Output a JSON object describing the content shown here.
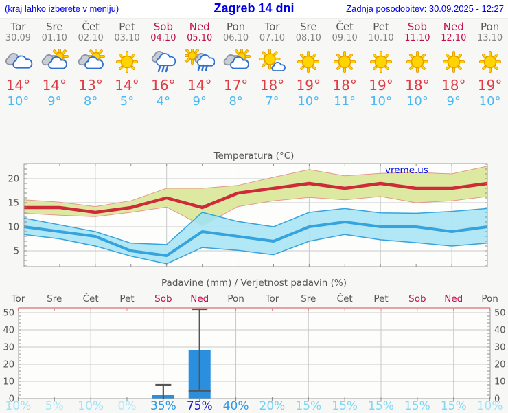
{
  "header": {
    "left_note": "(kraj lahko izberete v meniju)",
    "title": "Zagreb 14 dni",
    "updated": "Zadnja posodobitev: 30.09.2025 - 12:27"
  },
  "colors": {
    "header_blue": "#0000e8",
    "weekend": "#bf0d4f",
    "day_gray": "#555555",
    "date_gray": "#848484",
    "tmax_red": "#e13a45",
    "tmin_blue": "#4cb9f2",
    "axis_text": "#555555",
    "grid": "#c9c9c9",
    "border": "#9c9c9c",
    "tick": "#8a8a8a",
    "pink_axis": "#e08585",
    "watermark_blue": "#0010ee"
  },
  "days": [
    {
      "name": "Tor",
      "date": "30.09",
      "icon": "cloudy",
      "tmax": "14°",
      "tmin": "10°",
      "weekend": false
    },
    {
      "name": "Sre",
      "date": "01.10",
      "icon": "partly-sunny",
      "tmax": "14°",
      "tmin": "9°",
      "weekend": false
    },
    {
      "name": "Čet",
      "date": "02.10",
      "icon": "partly-sunny",
      "tmax": "13°",
      "tmin": "8°",
      "weekend": false
    },
    {
      "name": "Pet",
      "date": "03.10",
      "icon": "sunny",
      "tmax": "14°",
      "tmin": "5°",
      "weekend": false
    },
    {
      "name": "Sob",
      "date": "04.10",
      "icon": "rain",
      "tmax": "16°",
      "tmin": "4°",
      "weekend": true
    },
    {
      "name": "Ned",
      "date": "05.10",
      "icon": "sun-rain",
      "tmax": "14°",
      "tmin": "9°",
      "weekend": true
    },
    {
      "name": "Pon",
      "date": "06.10",
      "icon": "partly-sunny",
      "tmax": "17°",
      "tmin": "8°",
      "weekend": false
    },
    {
      "name": "Tor",
      "date": "07.10",
      "icon": "mostly-sunny",
      "tmax": "18°",
      "tmin": "7°",
      "weekend": false
    },
    {
      "name": "Sre",
      "date": "08.10",
      "icon": "sunny",
      "tmax": "19°",
      "tmin": "10°",
      "weekend": false
    },
    {
      "name": "Čet",
      "date": "09.10",
      "icon": "sunny",
      "tmax": "18°",
      "tmin": "11°",
      "weekend": false
    },
    {
      "name": "Pet",
      "date": "10.10",
      "icon": "sunny",
      "tmax": "19°",
      "tmin": "10°",
      "weekend": false
    },
    {
      "name": "Sob",
      "date": "11.10",
      "icon": "sunny",
      "tmax": "18°",
      "tmin": "10°",
      "weekend": true
    },
    {
      "name": "Ned",
      "date": "12.10",
      "icon": "sunny",
      "tmax": "18°",
      "tmin": "9°",
      "weekend": true
    },
    {
      "name": "Pon",
      "date": "13.10",
      "icon": "sunny",
      "tmax": "19°",
      "tmin": "10°",
      "weekend": false
    }
  ],
  "chart_data": [
    {
      "type": "line",
      "title": "Temperatura (°C)",
      "watermark": "vreme.us",
      "categories": [
        "30.09",
        "01.10",
        "02.10",
        "03.10",
        "04.10",
        "05.10",
        "06.10",
        "07.10",
        "08.10",
        "09.10",
        "10.10",
        "11.10",
        "12.10",
        "13.10"
      ],
      "ylim": [
        1.7,
        23.1
      ],
      "yticks": [
        5,
        10,
        15,
        20
      ],
      "grid": true,
      "series": [
        {
          "name": "max",
          "color": "#cf2a3a",
          "values": [
            14,
            14,
            13,
            14,
            16,
            14,
            17,
            18,
            19,
            18,
            19,
            18,
            18,
            19
          ]
        },
        {
          "name": "max_upper",
          "values": [
            15.6,
            15.1,
            14.2,
            15.4,
            18.0,
            18.0,
            18.6,
            20.3,
            21.9,
            20.6,
            21.1,
            21.3,
            21.0,
            22.6
          ]
        },
        {
          "name": "max_lower",
          "values": [
            12.8,
            12.4,
            12.1,
            13.0,
            14.1,
            10.2,
            14.2,
            15.4,
            16.1,
            15.6,
            16.3,
            15.0,
            15.4,
            16.3
          ]
        },
        {
          "name": "min",
          "color": "#35a3dd",
          "values": [
            10,
            9,
            8,
            5,
            4,
            9,
            8,
            7,
            10,
            11,
            10,
            10,
            9,
            10
          ]
        },
        {
          "name": "min_upper",
          "values": [
            11.8,
            10.4,
            9.0,
            6.6,
            6.3,
            13.0,
            11.1,
            10.0,
            13.0,
            13.8,
            12.9,
            12.8,
            13.2,
            13.8
          ]
        },
        {
          "name": "min_lower",
          "values": [
            8.4,
            7.5,
            6.0,
            3.9,
            2.3,
            5.7,
            5.1,
            4.2,
            7.0,
            8.4,
            7.3,
            6.7,
            6.0,
            6.6
          ]
        }
      ],
      "band_max_color": "#dde9a0",
      "band_max_edge": "#e8958e",
      "band_min_color": "#aae4f4",
      "band_min_edge": "#35a3dd",
      "overlap_color": "#7bd07b"
    },
    {
      "type": "bar",
      "title": "Padavine (mm) / Verjetnost padavin (%)",
      "categories": [
        "Tor",
        "Sre",
        "Čet",
        "Pet",
        "Sob",
        "Ned",
        "Pon",
        "Tor",
        "Sre",
        "Čet",
        "Pet",
        "Sob",
        "Ned",
        "Pon"
      ],
      "weekend_indices": [
        4,
        5,
        11,
        12
      ],
      "ylim": [
        0,
        52
      ],
      "yticks": [
        0,
        10,
        20,
        30,
        40,
        50
      ],
      "values": [
        0,
        0,
        0,
        0,
        2,
        28,
        0,
        0,
        0,
        0,
        0,
        0,
        0,
        0
      ],
      "whiskers": [
        {
          "day_index": 4,
          "low": 0,
          "high": 8
        },
        {
          "day_index": 5,
          "low": 4.5,
          "high": 52
        }
      ],
      "bar_color": "#2b8fe0",
      "whisker_color": "#555555",
      "probabilities": [
        "10%",
        "5%",
        "10%",
        "0%",
        "35%",
        "75%",
        "40%",
        "20%",
        "15%",
        "15%",
        "15%",
        "15%",
        "15%",
        "10%"
      ],
      "prob_colors": [
        "#9fe3f7",
        "#a9e7f8",
        "#9fe3f7",
        "#b0eaf9",
        "#2e9ae6",
        "#1b1ccc",
        "#2e9ae6",
        "#6fd2f2",
        "#7fd8f4",
        "#7fd8f4",
        "#7fd8f4",
        "#7fd8f4",
        "#7fd8f4",
        "#9fe3f7"
      ]
    }
  ]
}
